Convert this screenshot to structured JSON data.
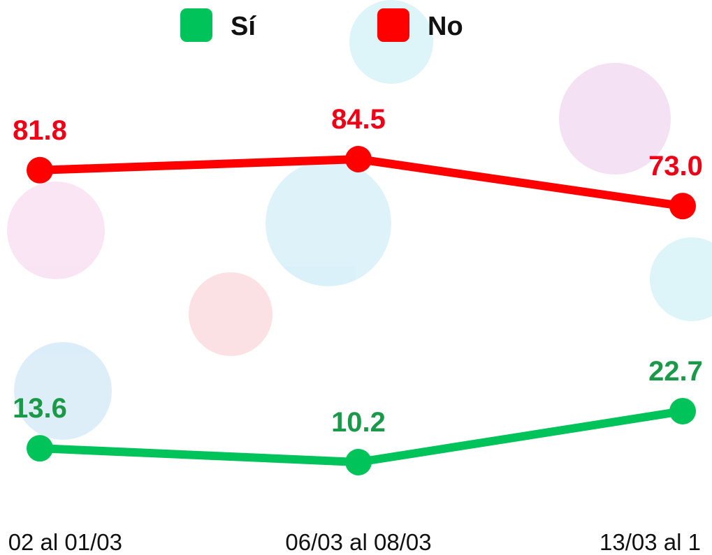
{
  "chart_data": {
    "type": "line",
    "categories": [
      "02 al 01/03",
      "06/03 al 08/03",
      "13/03 al 1"
    ],
    "series": [
      {
        "name": "Sí",
        "color": "#00c35a",
        "label_color": "#1a9a48",
        "values": [
          13.6,
          10.2,
          22.7
        ],
        "value_labels": [
          "13.6",
          "10.2",
          "22.7"
        ]
      },
      {
        "name": "No",
        "color": "#ff0000",
        "label_color": "#ee0016",
        "values": [
          81.8,
          84.5,
          73.0
        ],
        "value_labels": [
          "81.8",
          "84.5",
          "73.0"
        ]
      }
    ],
    "legend": "top"
  }
}
